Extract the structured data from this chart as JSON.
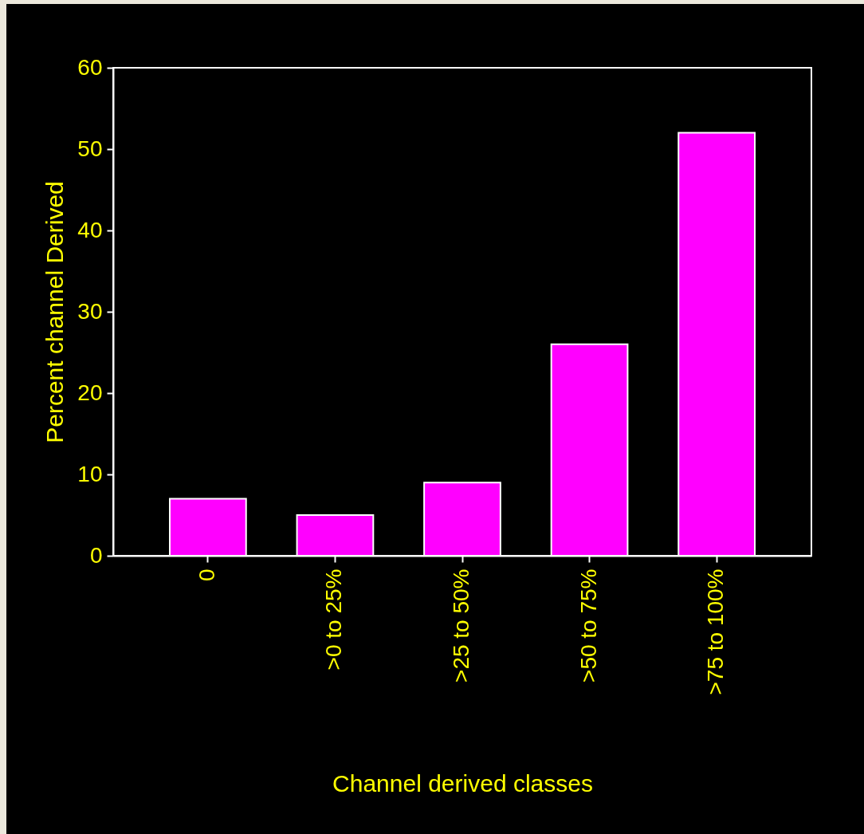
{
  "chart_data": {
    "type": "bar",
    "xlabel": "Channel derived classes",
    "ylabel": "Percent channel Derived",
    "categories": [
      "0",
      ">0 to 25%",
      ">25 to 50%",
      ">50 to 75%",
      ">75 to  100%"
    ],
    "values": [
      7,
      5,
      9,
      26,
      52
    ],
    "color": "#ff00ff",
    "ylim": [
      0,
      60
    ],
    "yticks": [
      0,
      10,
      20,
      30,
      40,
      50,
      60
    ],
    "grid": false
  }
}
